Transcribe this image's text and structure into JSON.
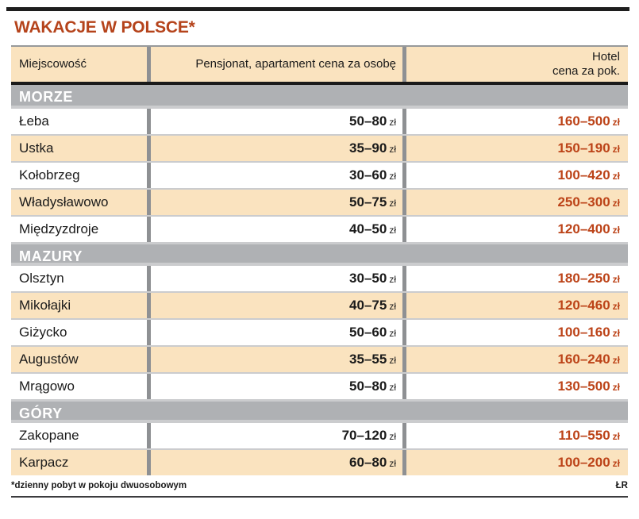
{
  "chart_data": {
    "type": "table",
    "title": "WAKACJE W POLSCE*",
    "columns": [
      {
        "label": "Miejscowość"
      },
      {
        "label": "Pensjonat, apartament cena za osobę"
      },
      {
        "label": "Hotel",
        "label2": "cena za pok."
      }
    ],
    "currency_suffix": "zł",
    "sections": [
      {
        "name": "MORZE",
        "rows": [
          {
            "place": "Łeba",
            "pension": "50–80",
            "hotel": "160–500"
          },
          {
            "place": "Ustka",
            "pension": "35–90",
            "hotel": "150–190"
          },
          {
            "place": "Kołobrzeg",
            "pension": "30–60",
            "hotel": "100–420"
          },
          {
            "place": "Władysławowo",
            "pension": "50–75",
            "hotel": "250–300"
          },
          {
            "place": "Międzyzdroje",
            "pension": "40–50",
            "hotel": "120–400"
          }
        ]
      },
      {
        "name": "MAZURY",
        "rows": [
          {
            "place": "Olsztyn",
            "pension": "30–50",
            "hotel": "180–250"
          },
          {
            "place": "Mikołajki",
            "pension": "40–75",
            "hotel": "120–460"
          },
          {
            "place": "Giżycko",
            "pension": "50–60",
            "hotel": "100–160"
          },
          {
            "place": "Augustów",
            "pension": "35–55",
            "hotel": "160–240"
          },
          {
            "place": "Mrągowo",
            "pension": "50–80",
            "hotel": "130–500"
          }
        ]
      },
      {
        "name": "GÓRY",
        "rows": [
          {
            "place": "Zakopane",
            "pension": "70–120",
            "hotel": "110–550"
          },
          {
            "place": "Karpacz",
            "pension": "60–80",
            "hotel": "100–200"
          }
        ]
      }
    ],
    "footnote": "*dzienny pobyt w pokoju dwuosobowym",
    "credit": "ŁR"
  },
  "colors": {
    "accent_title": "#b5431b",
    "price_red": "#bc4318",
    "cream": "#fae3bf",
    "band_gray": "#afb1b4",
    "divider_gray": "#8e9093",
    "separator_gray": "#cbccce",
    "rule_black": "#1a1a1a"
  }
}
